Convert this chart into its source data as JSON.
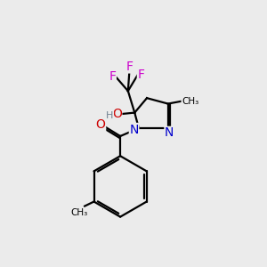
{
  "bg_color": "#ebebeb",
  "atom_colors": {
    "C": "#000000",
    "H": "#708090",
    "N": "#0000cc",
    "O": "#cc0000",
    "F": "#cc00cc"
  },
  "bond_color": "#000000",
  "bond_width": 1.6
}
